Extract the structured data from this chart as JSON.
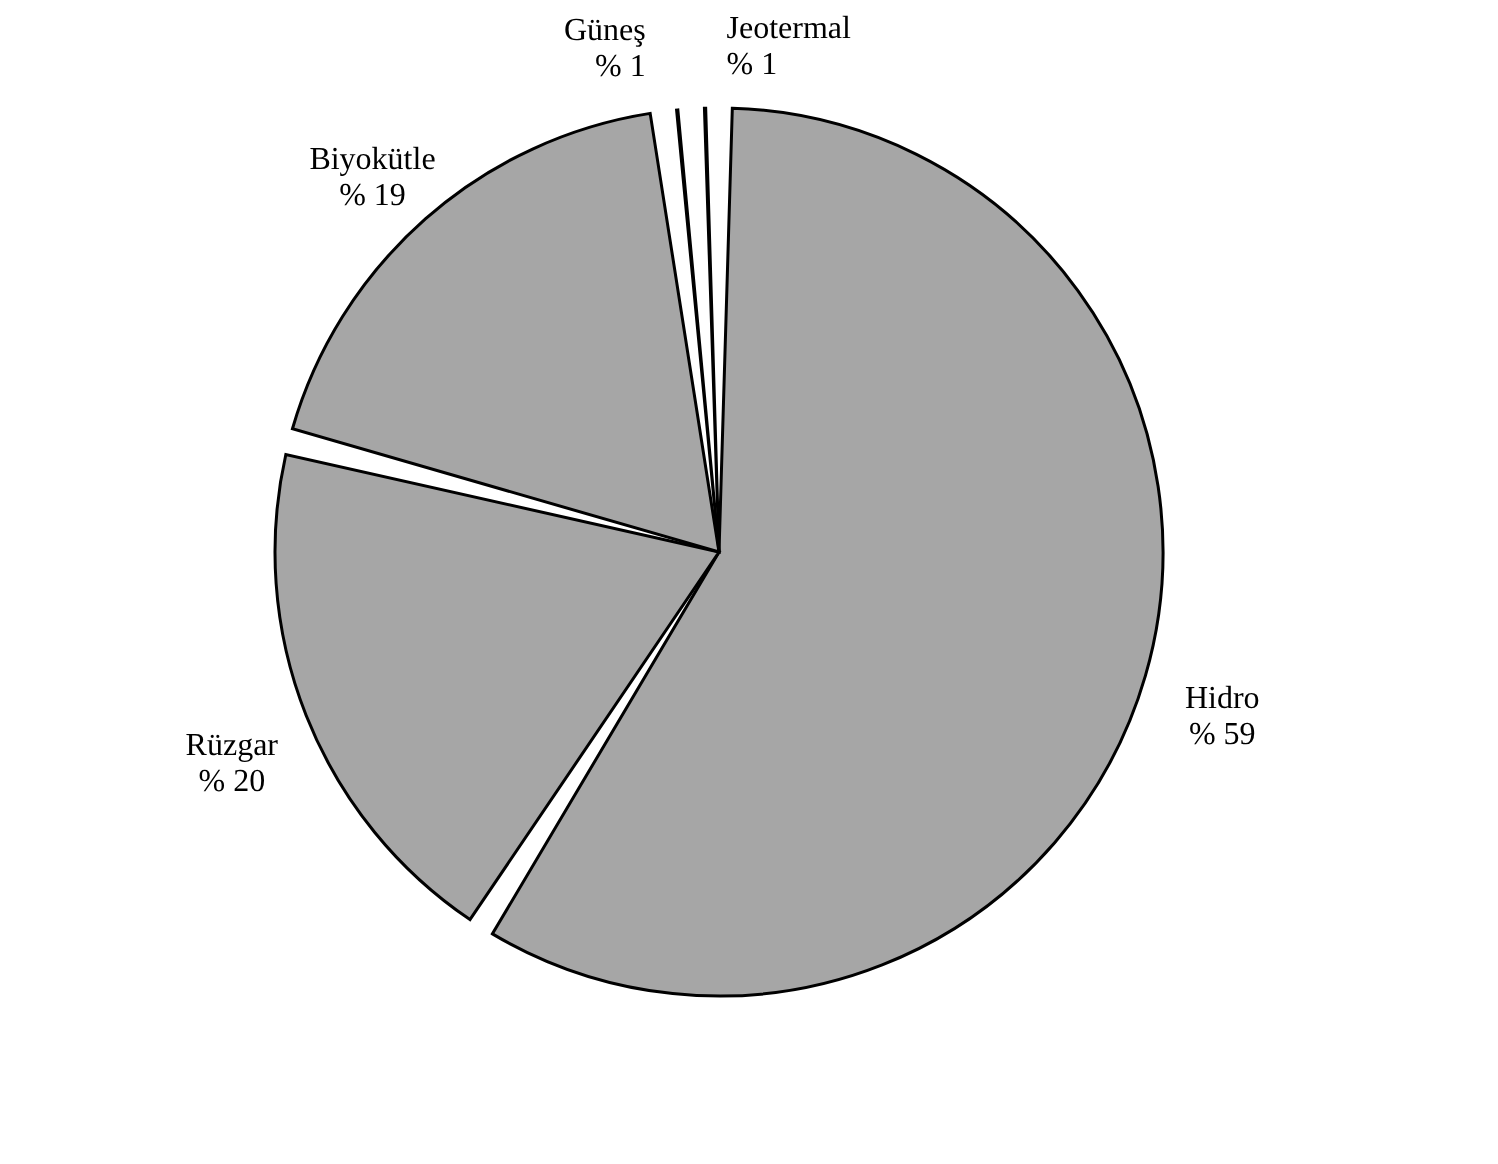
{
  "chart_data": {
    "type": "pie",
    "categories": [
      "Hidro",
      "Rüzgar",
      "Biyokütle",
      "Güneş",
      "Jeotermal"
    ],
    "values": [
      59,
      20,
      19,
      1,
      1
    ],
    "value_labels": [
      "% 59",
      "% 20",
      "% 19",
      "% 1",
      "% 1"
    ],
    "colors": [
      "#a6a6a6",
      "#a6a6a6",
      "#a6a6a6",
      "#a6a6a6",
      "#a6a6a6"
    ]
  }
}
